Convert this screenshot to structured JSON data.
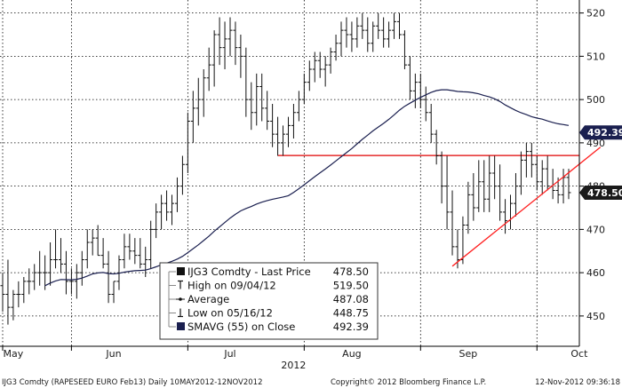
{
  "chart_data": {
    "type": "ohlc",
    "ticker": "IJG3 Comdty",
    "series": [
      {
        "name": "IJG3 Comdty - Last Price",
        "daily_ohlc": [
          [
            457,
            460,
            451,
            455
          ],
          [
            455,
            463,
            448,
            452
          ],
          [
            452,
            456,
            449,
            455
          ],
          [
            455,
            458,
            452,
            455
          ],
          [
            455,
            459,
            453,
            458
          ],
          [
            458,
            461,
            455,
            458
          ],
          [
            458,
            462,
            456,
            460
          ],
          [
            460,
            465,
            457,
            460
          ],
          [
            460,
            464,
            456,
            460
          ],
          [
            460,
            467,
            457,
            463
          ],
          [
            463,
            470,
            461,
            463
          ],
          [
            463,
            468,
            460,
            462
          ],
          [
            462,
            465,
            455,
            458
          ],
          [
            458,
            461,
            455,
            458
          ],
          [
            458,
            462,
            454,
            460
          ],
          [
            460,
            465,
            457,
            463
          ],
          [
            463,
            470,
            461,
            467
          ],
          [
            467,
            470,
            464,
            468
          ],
          [
            468,
            471,
            464,
            464
          ],
          [
            464,
            468,
            461,
            462
          ],
          [
            462,
            465,
            453,
            455
          ],
          [
            455,
            458,
            453,
            458
          ],
          [
            458,
            464,
            456,
            463
          ],
          [
            463,
            469,
            461,
            466
          ],
          [
            466,
            469,
            463,
            465
          ],
          [
            465,
            468,
            462,
            464
          ],
          [
            464,
            468,
            461,
            462
          ],
          [
            462,
            466,
            459,
            463
          ],
          [
            463,
            472,
            461,
            470
          ],
          [
            470,
            476,
            468,
            474
          ],
          [
            474,
            478,
            470,
            476
          ],
          [
            476,
            479,
            472,
            474
          ],
          [
            474,
            478,
            471,
            476
          ],
          [
            476,
            482,
            474,
            480
          ],
          [
            480,
            487,
            478,
            485
          ],
          [
            485,
            497,
            483,
            495
          ],
          [
            495,
            502,
            490,
            498
          ],
          [
            498,
            505,
            494,
            500
          ],
          [
            500,
            507,
            496,
            505
          ],
          [
            505,
            512,
            502,
            508
          ],
          [
            508,
            516,
            503,
            515
          ],
          [
            515,
            519,
            508,
            512
          ],
          [
            512,
            518,
            507,
            514
          ],
          [
            514,
            519,
            510,
            516
          ],
          [
            516,
            518,
            508,
            512
          ],
          [
            512,
            515,
            505,
            510
          ],
          [
            510,
            512,
            496,
            500
          ],
          [
            500,
            504,
            493,
            497
          ],
          [
            497,
            506,
            494,
            503
          ],
          [
            503,
            506,
            495,
            498
          ],
          [
            498,
            502,
            493,
            495
          ],
          [
            495,
            499,
            489,
            492
          ],
          [
            492,
            496,
            487,
            490
          ],
          [
            490,
            494,
            487,
            492
          ],
          [
            492,
            496,
            489,
            494
          ],
          [
            494,
            499,
            491,
            497
          ],
          [
            497,
            502,
            495,
            500
          ],
          [
            500,
            506,
            499,
            504
          ],
          [
            504,
            509,
            502,
            507
          ],
          [
            507,
            511,
            504,
            509
          ],
          [
            509,
            511,
            505,
            507
          ],
          [
            507,
            510,
            503,
            508
          ],
          [
            508,
            512,
            506,
            511
          ],
          [
            511,
            515,
            509,
            513
          ],
          [
            513,
            518,
            510,
            516
          ],
          [
            516,
            519,
            512,
            515
          ],
          [
            515,
            518,
            511,
            514
          ],
          [
            514,
            519,
            512,
            517
          ],
          [
            517,
            520,
            514,
            516
          ],
          [
            516,
            519,
            511,
            513
          ],
          [
            513,
            518,
            511,
            517
          ],
          [
            517,
            520,
            514,
            516
          ],
          [
            516,
            519,
            512,
            514
          ],
          [
            514,
            518,
            512,
            516
          ],
          [
            516,
            520,
            514,
            518
          ],
          [
            518,
            520,
            514,
            515
          ],
          [
            515,
            516,
            507,
            508
          ],
          [
            508,
            510,
            500,
            502
          ],
          [
            502,
            506,
            498,
            504
          ],
          [
            504,
            506,
            498,
            500
          ],
          [
            500,
            503,
            495,
            497
          ],
          [
            497,
            499,
            490,
            492
          ],
          [
            492,
            493,
            485,
            487
          ],
          [
            487,
            488,
            476,
            480
          ],
          [
            480,
            487,
            470,
            474
          ],
          [
            474,
            479,
            464,
            466
          ],
          [
            466,
            470,
            461,
            463
          ],
          [
            463,
            473,
            462,
            471
          ],
          [
            471,
            481,
            469,
            478
          ],
          [
            478,
            483,
            472,
            475
          ],
          [
            475,
            486,
            474,
            481
          ],
          [
            481,
            486,
            474,
            477
          ],
          [
            477,
            487,
            474,
            483
          ],
          [
            483,
            487,
            477,
            480
          ],
          [
            480,
            485,
            472,
            474
          ],
          [
            474,
            477,
            469,
            472
          ],
          [
            472,
            478,
            470,
            476
          ],
          [
            476,
            483,
            473,
            480
          ],
          [
            480,
            488,
            478,
            486
          ],
          [
            486,
            490,
            482,
            488
          ],
          [
            488,
            490,
            482,
            485
          ],
          [
            485,
            487,
            479,
            481
          ],
          [
            481,
            486,
            478,
            484
          ],
          [
            484,
            487,
            479,
            480
          ],
          [
            480,
            484,
            477,
            479
          ],
          [
            479,
            482,
            476,
            478
          ],
          [
            478,
            484,
            476,
            482
          ],
          [
            482,
            484,
            477,
            478.5
          ]
        ]
      },
      {
        "name": "SMAVG (55) on Close",
        "note": "55-period simple moving average of closing prices"
      }
    ],
    "legend": [
      "IJG3 Comdty - Last Price",
      "High on 09/04/12",
      "Average",
      "Low on 05/16/12",
      "SMAVG (55) on Close"
    ],
    "legend_values": [
      "478.50",
      "519.50",
      "487.08",
      "448.75",
      "492.39"
    ],
    "price_badges": [
      {
        "label": "492.39",
        "value": 492.39,
        "color": "#1a1f4f"
      },
      {
        "label": "478.50",
        "value": 478.5,
        "color": "#1a1a1a"
      }
    ],
    "horizontal_line": {
      "value": 487.08,
      "start_index": 52,
      "color": "#e00000"
    },
    "trend_lines": [
      {
        "from": [
          85,
          461.5
        ],
        "to": [
          113,
          489
        ],
        "color": "#ff2020"
      }
    ],
    "x_axis": {
      "month_labels": [
        "May",
        "Jun",
        "Jul",
        "Aug",
        "Sep",
        "Oct"
      ],
      "month_label_index": [
        2,
        21,
        43,
        66,
        88,
        109
      ],
      "month_tick_index": [
        0,
        13,
        35,
        57,
        79,
        101
      ],
      "year_label": "2012",
      "year_label_index": 55
    },
    "y_axis": {
      "ylim": [
        443,
        523
      ],
      "ticks": [
        450,
        460,
        470,
        480,
        490,
        500,
        510,
        520
      ],
      "tick_labels": [
        "450",
        "460",
        "470",
        "480",
        "490",
        "500",
        "510",
        "520"
      ],
      "side": "right"
    },
    "grid": true,
    "legend_position": "bottom-center",
    "colors": {
      "price": "#111111",
      "moving_average": "#1a1f4f",
      "average_line": "#e00000",
      "trend_line": "#ff2020",
      "grid": "#000000"
    }
  },
  "footer": {
    "left": "IJG3 Comdty (RAPESEED  EURO   Feb13)  Daily 10MAY2012-12NOV2012",
    "center": "Copyright© 2012 Bloomberg Finance L.P.",
    "right": "12-Nov-2012 09:36:18"
  }
}
